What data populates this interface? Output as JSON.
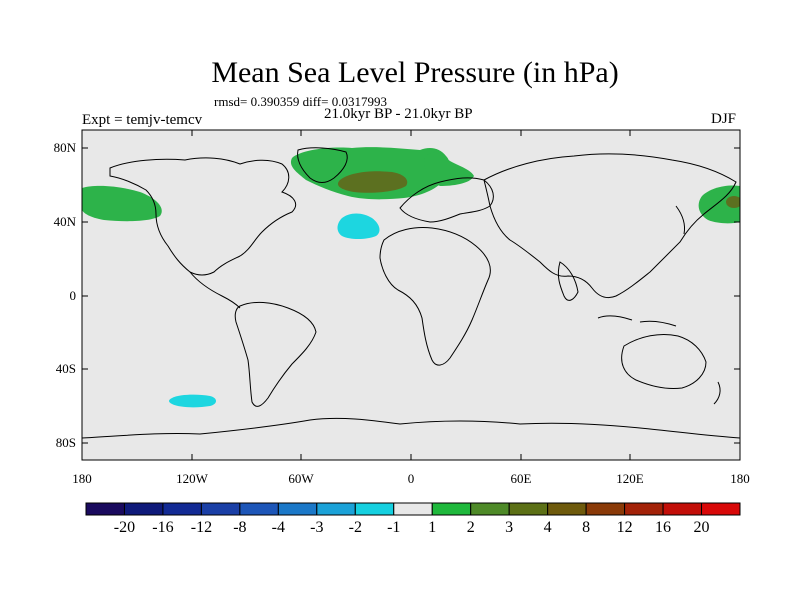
{
  "title": "Mean Sea Level Pressure (in hPa)",
  "stats": "rmsd= 0.390359 diff= 0.0317993",
  "period": "21.0kyr BP - 21.0kyr BP",
  "experiment": "Expt = temjv-temcv",
  "season": "DJF",
  "axes": {
    "y_ticks": [
      "80N",
      "40N",
      "0",
      "40S",
      "80S"
    ],
    "x_ticks": [
      "180",
      "120W",
      "60W",
      "0",
      "60E",
      "120E",
      "180"
    ]
  },
  "colorbar": {
    "labels": [
      "-20",
      "-16",
      "-12",
      "-8",
      "-4",
      "-3",
      "-2",
      "-1",
      "1",
      "2",
      "3",
      "4",
      "8",
      "12",
      "16",
      "20"
    ],
    "colors": [
      "#1a0a5e",
      "#0f1a7a",
      "#122a94",
      "#1a3fa6",
      "#1d56b8",
      "#1b78c8",
      "#1ba2d8",
      "#16d0e0",
      "#e8e8e8",
      "#1fb83c",
      "#4e8a28",
      "#5c7016",
      "#6e5a0c",
      "#8a3a08",
      "#a32208",
      "#c20e08",
      "#d80808"
    ]
  },
  "colors": {
    "ocean_background": "#e8e8e8",
    "positive_anomaly": "#2db34a",
    "strong_positive": "#5c7020",
    "negative_anomaly": "#1dd6e0"
  }
}
